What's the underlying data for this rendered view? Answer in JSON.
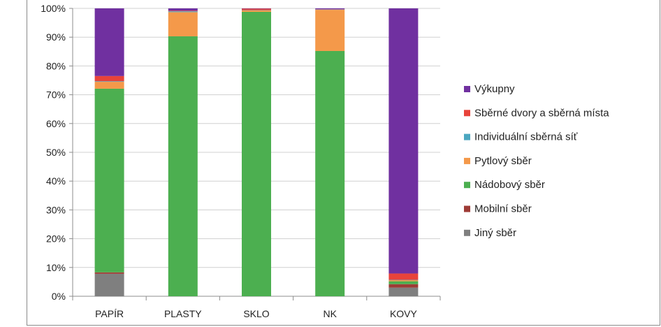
{
  "chart_data": {
    "type": "bar",
    "stacked": true,
    "percent": true,
    "categories": [
      "PAPÍR",
      "PLASTY",
      "SKLO",
      "NK",
      "KOVY"
    ],
    "yticks": [
      "0%",
      "10%",
      "20%",
      "30%",
      "40%",
      "50%",
      "60%",
      "70%",
      "80%",
      "90%",
      "100%"
    ],
    "ylim": [
      0,
      100
    ],
    "grid": true,
    "legend_position": "right",
    "series": [
      {
        "name": "Jiný sběr",
        "color": "#7f7f7f",
        "values": [
          7.8,
          0,
          0,
          0,
          3.0
        ]
      },
      {
        "name": "Mobilní sběr",
        "color": "#9e3b36",
        "values": [
          0.5,
          0,
          0,
          0,
          1.2
        ]
      },
      {
        "name": "Nádobový sběr",
        "color": "#4caf50",
        "values": [
          63.8,
          90.3,
          98.8,
          85.2,
          1.0
        ]
      },
      {
        "name": "Pytlový sběr",
        "color": "#f4994a",
        "values": [
          2.4,
          8.4,
          0.5,
          14.3,
          0.4
        ]
      },
      {
        "name": "Individuální sběrná síť",
        "color": "#4ba7c0",
        "values": [
          0.2,
          0.3,
          0.1,
          0.1,
          0.1
        ]
      },
      {
        "name": "Sběrné dvory a sběrná místa",
        "color": "#e8433a",
        "values": [
          1.8,
          0.2,
          0.5,
          0.1,
          2.2
        ]
      },
      {
        "name": "Výkupny",
        "color": "#7030a0",
        "values": [
          23.5,
          0.8,
          0.1,
          0.3,
          92.1
        ]
      }
    ],
    "legend_order": [
      "Výkupny",
      "Sběrné dvory a sběrná místa",
      "Individuální sběrná síť",
      "Pytlový sběr",
      "Nádobový sběr",
      "Mobilní sběr",
      "Jiný sběr"
    ]
  }
}
